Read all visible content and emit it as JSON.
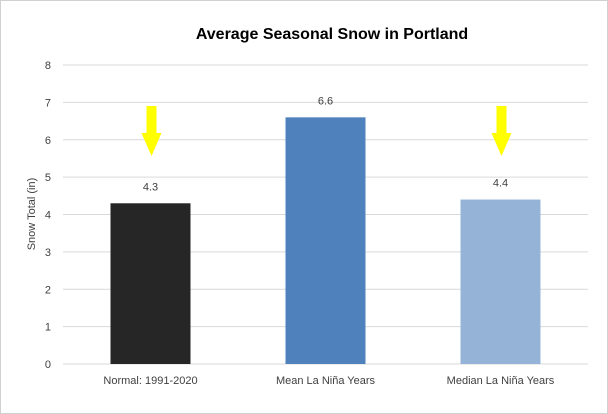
{
  "chart_data": {
    "type": "bar",
    "title": "Average Seasonal Snow in Portland",
    "xlabel": "",
    "ylabel": "Snow Total (in)",
    "ylim": [
      0,
      8
    ],
    "yticks": [
      "0",
      "1",
      "2",
      "3",
      "4",
      "5",
      "6",
      "7",
      "8"
    ],
    "grid": true,
    "categories": [
      "Normal: 1991-2020",
      "Mean La Niña Years",
      "Median La Niña Years"
    ],
    "values": [
      4.3,
      6.6,
      4.4
    ],
    "data_labels": [
      "4.3",
      "6.6",
      "4.4"
    ],
    "bar_colors": [
      "#262626",
      "#4f81bd",
      "#95b3d7"
    ],
    "annotations": [
      {
        "type": "arrow-down",
        "category_index": 0,
        "color": "#ffff00"
      },
      {
        "type": "arrow-down",
        "category_index": 2,
        "color": "#ffff00"
      }
    ]
  }
}
